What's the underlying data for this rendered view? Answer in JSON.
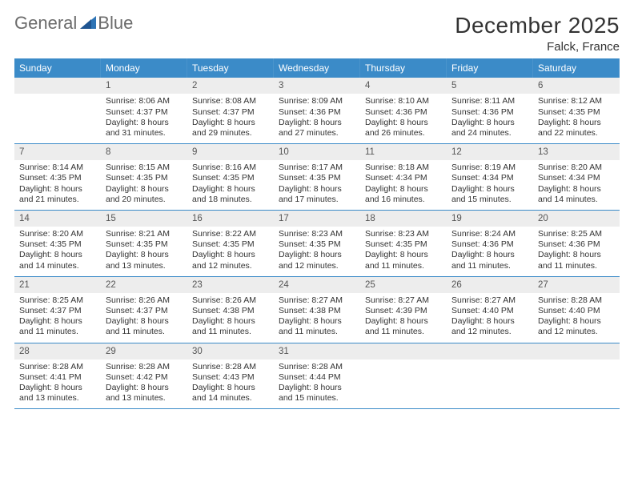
{
  "logo": {
    "text1": "General",
    "text2": "Blue"
  },
  "title": "December 2025",
  "location": "Falck, France",
  "weekday_bg": "#3b8bc8",
  "weekday_fg": "#ffffff",
  "daynum_bg": "#ededed",
  "rule_color": "#3b8bc8",
  "weekdays": [
    "Sunday",
    "Monday",
    "Tuesday",
    "Wednesday",
    "Thursday",
    "Friday",
    "Saturday"
  ],
  "weeks": [
    [
      {
        "day": "",
        "lines": []
      },
      {
        "day": "1",
        "lines": [
          "Sunrise: 8:06 AM",
          "Sunset: 4:37 PM",
          "Daylight: 8 hours",
          "and 31 minutes."
        ]
      },
      {
        "day": "2",
        "lines": [
          "Sunrise: 8:08 AM",
          "Sunset: 4:37 PM",
          "Daylight: 8 hours",
          "and 29 minutes."
        ]
      },
      {
        "day": "3",
        "lines": [
          "Sunrise: 8:09 AM",
          "Sunset: 4:36 PM",
          "Daylight: 8 hours",
          "and 27 minutes."
        ]
      },
      {
        "day": "4",
        "lines": [
          "Sunrise: 8:10 AM",
          "Sunset: 4:36 PM",
          "Daylight: 8 hours",
          "and 26 minutes."
        ]
      },
      {
        "day": "5",
        "lines": [
          "Sunrise: 8:11 AM",
          "Sunset: 4:36 PM",
          "Daylight: 8 hours",
          "and 24 minutes."
        ]
      },
      {
        "day": "6",
        "lines": [
          "Sunrise: 8:12 AM",
          "Sunset: 4:35 PM",
          "Daylight: 8 hours",
          "and 22 minutes."
        ]
      }
    ],
    [
      {
        "day": "7",
        "lines": [
          "Sunrise: 8:14 AM",
          "Sunset: 4:35 PM",
          "Daylight: 8 hours",
          "and 21 minutes."
        ]
      },
      {
        "day": "8",
        "lines": [
          "Sunrise: 8:15 AM",
          "Sunset: 4:35 PM",
          "Daylight: 8 hours",
          "and 20 minutes."
        ]
      },
      {
        "day": "9",
        "lines": [
          "Sunrise: 8:16 AM",
          "Sunset: 4:35 PM",
          "Daylight: 8 hours",
          "and 18 minutes."
        ]
      },
      {
        "day": "10",
        "lines": [
          "Sunrise: 8:17 AM",
          "Sunset: 4:35 PM",
          "Daylight: 8 hours",
          "and 17 minutes."
        ]
      },
      {
        "day": "11",
        "lines": [
          "Sunrise: 8:18 AM",
          "Sunset: 4:34 PM",
          "Daylight: 8 hours",
          "and 16 minutes."
        ]
      },
      {
        "day": "12",
        "lines": [
          "Sunrise: 8:19 AM",
          "Sunset: 4:34 PM",
          "Daylight: 8 hours",
          "and 15 minutes."
        ]
      },
      {
        "day": "13",
        "lines": [
          "Sunrise: 8:20 AM",
          "Sunset: 4:34 PM",
          "Daylight: 8 hours",
          "and 14 minutes."
        ]
      }
    ],
    [
      {
        "day": "14",
        "lines": [
          "Sunrise: 8:20 AM",
          "Sunset: 4:35 PM",
          "Daylight: 8 hours",
          "and 14 minutes."
        ]
      },
      {
        "day": "15",
        "lines": [
          "Sunrise: 8:21 AM",
          "Sunset: 4:35 PM",
          "Daylight: 8 hours",
          "and 13 minutes."
        ]
      },
      {
        "day": "16",
        "lines": [
          "Sunrise: 8:22 AM",
          "Sunset: 4:35 PM",
          "Daylight: 8 hours",
          "and 12 minutes."
        ]
      },
      {
        "day": "17",
        "lines": [
          "Sunrise: 8:23 AM",
          "Sunset: 4:35 PM",
          "Daylight: 8 hours",
          "and 12 minutes."
        ]
      },
      {
        "day": "18",
        "lines": [
          "Sunrise: 8:23 AM",
          "Sunset: 4:35 PM",
          "Daylight: 8 hours",
          "and 11 minutes."
        ]
      },
      {
        "day": "19",
        "lines": [
          "Sunrise: 8:24 AM",
          "Sunset: 4:36 PM",
          "Daylight: 8 hours",
          "and 11 minutes."
        ]
      },
      {
        "day": "20",
        "lines": [
          "Sunrise: 8:25 AM",
          "Sunset: 4:36 PM",
          "Daylight: 8 hours",
          "and 11 minutes."
        ]
      }
    ],
    [
      {
        "day": "21",
        "lines": [
          "Sunrise: 8:25 AM",
          "Sunset: 4:37 PM",
          "Daylight: 8 hours",
          "and 11 minutes."
        ]
      },
      {
        "day": "22",
        "lines": [
          "Sunrise: 8:26 AM",
          "Sunset: 4:37 PM",
          "Daylight: 8 hours",
          "and 11 minutes."
        ]
      },
      {
        "day": "23",
        "lines": [
          "Sunrise: 8:26 AM",
          "Sunset: 4:38 PM",
          "Daylight: 8 hours",
          "and 11 minutes."
        ]
      },
      {
        "day": "24",
        "lines": [
          "Sunrise: 8:27 AM",
          "Sunset: 4:38 PM",
          "Daylight: 8 hours",
          "and 11 minutes."
        ]
      },
      {
        "day": "25",
        "lines": [
          "Sunrise: 8:27 AM",
          "Sunset: 4:39 PM",
          "Daylight: 8 hours",
          "and 11 minutes."
        ]
      },
      {
        "day": "26",
        "lines": [
          "Sunrise: 8:27 AM",
          "Sunset: 4:40 PM",
          "Daylight: 8 hours",
          "and 12 minutes."
        ]
      },
      {
        "day": "27",
        "lines": [
          "Sunrise: 8:28 AM",
          "Sunset: 4:40 PM",
          "Daylight: 8 hours",
          "and 12 minutes."
        ]
      }
    ],
    [
      {
        "day": "28",
        "lines": [
          "Sunrise: 8:28 AM",
          "Sunset: 4:41 PM",
          "Daylight: 8 hours",
          "and 13 minutes."
        ]
      },
      {
        "day": "29",
        "lines": [
          "Sunrise: 8:28 AM",
          "Sunset: 4:42 PM",
          "Daylight: 8 hours",
          "and 13 minutes."
        ]
      },
      {
        "day": "30",
        "lines": [
          "Sunrise: 8:28 AM",
          "Sunset: 4:43 PM",
          "Daylight: 8 hours",
          "and 14 minutes."
        ]
      },
      {
        "day": "31",
        "lines": [
          "Sunrise: 8:28 AM",
          "Sunset: 4:44 PM",
          "Daylight: 8 hours",
          "and 15 minutes."
        ]
      },
      {
        "day": "",
        "lines": []
      },
      {
        "day": "",
        "lines": []
      },
      {
        "day": "",
        "lines": []
      }
    ]
  ]
}
